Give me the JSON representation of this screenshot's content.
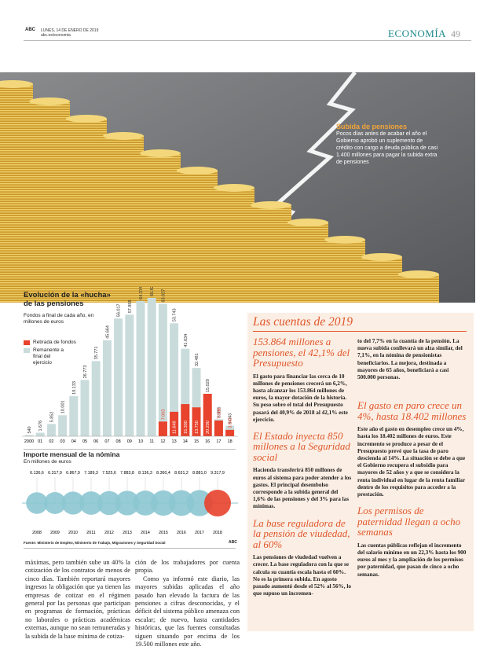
{
  "header": {
    "brand": "ABC",
    "date": "LUNES, 14 DE ENERO DE 2019",
    "web": "abc.es/economia",
    "section": "ECONOMÍA",
    "page": "49"
  },
  "photo_caption": {
    "title": "Subida de pensiones",
    "text": "Pocos días antes de acabar el año el Gobierno aprobó un suplemento de crédito con cargo a deuda pública de casi 1.400 millones para pagar la subida extra de pensiones"
  },
  "chart_data": [
    {
      "type": "bar",
      "title": "Evolución de la «hucha» de las pensiones",
      "subtitle": "Fondos a final de cada año, en millones de euros",
      "categories": [
        "2000",
        "01",
        "02",
        "03",
        "04",
        "05",
        "06",
        "07",
        "08",
        "09",
        "10",
        "11",
        "12",
        "13",
        "14",
        "15",
        "16",
        "17",
        "18"
      ],
      "series": [
        {
          "name": "Retirada de fondos",
          "color": "#e8432c",
          "values": [
            null,
            null,
            null,
            null,
            null,
            null,
            null,
            null,
            null,
            null,
            null,
            null,
            7003,
            11648,
            15300,
            13750,
            20200,
            7500,
            3042
          ],
          "value_labels": [
            null,
            null,
            null,
            null,
            null,
            null,
            null,
            null,
            null,
            null,
            null,
            null,
            "7.003",
            "11.648",
            "15.300",
            "13.750",
            "20.200",
            "7.500",
            "3.042"
          ]
        },
        {
          "name": "Remanente a final del ejercicio",
          "color": "#c9dcdb",
          "values": [
            540,
            1676,
            5852,
            10001,
            19133,
            26773,
            35771,
            45664,
            56017,
            57858,
            64374,
            65820,
            63027,
            53743,
            41634,
            32481,
            15020,
            8095,
            5043
          ],
          "value_labels": [
            "540",
            "1.676",
            "5.852",
            "10.001",
            "19.133",
            "26.773",
            "35.771",
            "45.664",
            "56.017",
            "57.858",
            "64.374",
            "65.820",
            "63.027",
            "53.743",
            "41.634",
            "32.481",
            "15.020",
            "8.095",
            "5.043"
          ]
        }
      ]
    },
    {
      "type": "bubble",
      "title": "Importe mensual de la nómina",
      "subtitle": "En millones de euros",
      "categories": [
        "2008",
        "2009",
        "2010",
        "2011",
        "2012",
        "2013",
        "2014",
        "2015",
        "2016",
        "2017",
        "2018"
      ],
      "values": [
        6136.6,
        6317.9,
        6867.9,
        7189.3,
        7525.6,
        7883.8,
        8136.3,
        8360.4,
        8631.2,
        8881.0,
        9317.9
      ],
      "value_labels": [
        "6.136,6",
        "6.317,9",
        "6.867,9",
        "7.189,3",
        "7.525,6",
        "7.883,8",
        "8.136,3",
        "8.360,4",
        "8.631,2",
        "8.881,0",
        "9.317,9"
      ],
      "color": "#8cc6d1",
      "highlight_color": "#e8432c",
      "source": "Fuente: Ministerio de Empleo, Ministerio de Trabajo, Migraciones y Seguridad Social",
      "credit": "ABC"
    }
  ],
  "article": {
    "blocks": [
      "máximas, pero también sube un 40% la cotización de los contratos de menos de cinco días. También reportará mayores ingresos la obligación que ya tienen las empresas de cotizar en el régimen general por las personas que participan en programas de formación, prácticas no laborales o prácticas académicas externas, aunque no sean remuneradas y la subida de la base mínima de cotiza-",
      "ción de los trabajadores por cuenta propia.",
      "Como ya informó este diario, las mayores subidas aplicadas el año pasado han elevado la factura de las pensiones a cifras desconocidas, y el déficit del sistema público amenaza con escalar; de nuevo, hasta cantidades históricas, que las fuentes consultadas siguen situando por encima de los 19.500 millones este año."
    ]
  },
  "sidebar": {
    "title": "Las cuentas de 2019",
    "sections": [
      {
        "heading": "153.864 millones a pensiones, el 42,1% del Presupuesto",
        "body": "El gasto para financiar las cerca de 10 millones de pensiones crecerá un 6,2%, hasta alcanzar los 153.864 millones de euros, la mayor dotación de la historia. Su peso sobre el total del Presupuesto pasará del 40,9% de 2018 al 42,1% este ejercicio."
      },
      {
        "heading": "El Estado inyecta 850 millones a la Seguridad social",
        "body": "Hacienda transferirá 850 millones de euros al sistema para poder atender a los gastos. El principal desembolso corresponde a la subida general del 1,6% de las pensiones y del 3% para las mínimas."
      },
      {
        "heading": "La base reguladora de la pensión de viudedad, al 60%",
        "body": "Las pensiones de viudedad vuelven a crecer. La base reguladora con la que se calcula su cuantía escala hasta el 60%. No es la primera subida. En agosto pasado aumentó desde el 52% al 56%, lo que supuso un incremen-"
      },
      {
        "heading": "El gasto en paro crece un 4%, hasta 18.402 millones",
        "body": "Este año el gasto en desempleo crece un 4%, hasta los 18.402 millones de euros. Este incremento se produce a pesar de el Presupuesto prevé que la tasa de paro descienda al 14%. La situación se debe a que el Gobierno recupera el subsidio para mayores de 52 años y a que se considera la renta individual en lugar de la renta familiar dentro de los requisitos para acceder a la prestación."
      },
      {
        "heading": "Los permisos de paternidad llegan a ocho semanas",
        "body": "Las cuentas públicas reflejan el incremento del salario mínimo en un 22,3% hasta los 900 euros al mes y la ampliación de los permisos por paternidad, que pasan de cinco a ocho semanas."
      }
    ],
    "continuation": "to del 7,7% en la cuantía de la pensión. La nueva subida conllevará un alza similar, del 7,1%, en la nómina de pensionistas beneficiarios. La mejora, destinada a mayores de 65 años, beneficiará a casi 500.000 personas."
  }
}
